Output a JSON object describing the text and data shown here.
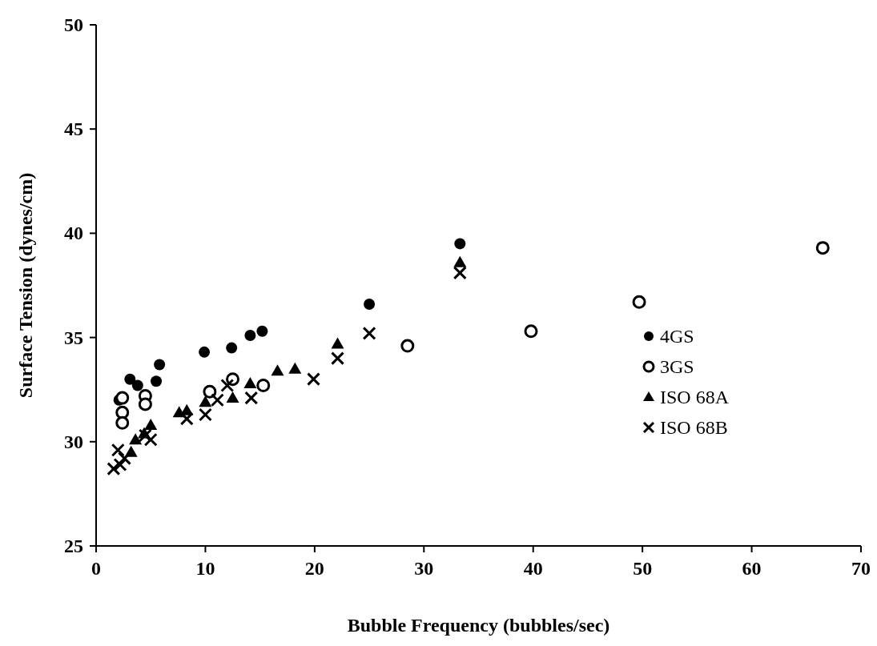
{
  "chart_data": {
    "type": "scatter",
    "xlabel": "Bubble Frequency (bubbles/sec)",
    "ylabel": "Surface Tension (dynes/cm)",
    "xlim": [
      0,
      70
    ],
    "xticks": [
      0,
      10,
      20,
      30,
      40,
      50,
      60,
      70
    ],
    "ylim": [
      25,
      50
    ],
    "yticks": [
      25,
      30,
      35,
      40,
      45,
      50
    ],
    "grid": false,
    "legend": "bottom right",
    "series": [
      {
        "name": "4GS",
        "color": "#000000",
        "marker": "circle",
        "x": [
          2.1,
          3.1,
          3.8,
          5.5,
          5.8,
          9.9,
          12.4,
          14.1,
          15.2,
          25,
          33.3
        ],
        "values": [
          32.0,
          33.0,
          32.7,
          32.9,
          33.7,
          34.3,
          34.5,
          35.1,
          35.3,
          36.6,
          39.5
        ]
      },
      {
        "name": "3GS",
        "color": "#000000",
        "marker": "circle-open",
        "x": [
          2.4,
          2.4,
          2.4,
          4.5,
          4.5,
          10.4,
          12.5,
          15.3,
          28.5,
          39.8,
          49.7,
          66.5
        ],
        "values": [
          32.1,
          31.4,
          30.9,
          32.2,
          31.8,
          32.4,
          33.0,
          32.7,
          34.6,
          35.3,
          36.7,
          39.3
        ]
      },
      {
        "name": "ISO 68A",
        "color": "#000000",
        "marker": "triangle",
        "x": [
          3.2,
          3.6,
          4.4,
          5.0,
          7.6,
          8.3,
          10.0,
          12.5,
          14.1,
          16.6,
          18.2,
          22.1,
          33.3
        ],
        "values": [
          29.5,
          30.1,
          30.4,
          30.8,
          31.4,
          31.5,
          31.9,
          32.1,
          32.8,
          33.4,
          33.5,
          34.7,
          38.6
        ]
      },
      {
        "name": "ISO 68B",
        "color": "#000000",
        "marker": "cross",
        "x": [
          1.6,
          2.0,
          2.2,
          2.6,
          4.5,
          5.0,
          8.3,
          10.0,
          11.1,
          12.0,
          14.2,
          19.9,
          22.1,
          25,
          33.3
        ],
        "values": [
          28.7,
          29.6,
          28.9,
          29.2,
          30.3,
          30.1,
          31.1,
          31.3,
          32.0,
          32.7,
          32.1,
          33.0,
          34.0,
          35.2,
          38.1
        ]
      }
    ]
  }
}
